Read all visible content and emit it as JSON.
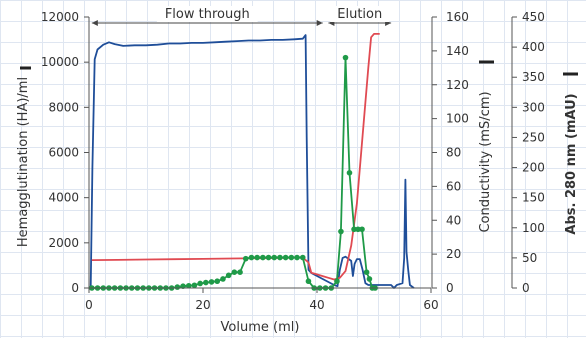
{
  "chart_data": {
    "type": "line",
    "title": "",
    "xlabel": "Volume (ml)",
    "xlim": [
      0,
      60
    ],
    "x_ticks": [
      "0",
      "20",
      "40",
      "60"
    ],
    "ylabel_left": "Hemagglutination (HA)/ml",
    "ylim_left": [
      0,
      12000
    ],
    "y_ticks_left": [
      "0",
      "2000",
      "4000",
      "6000",
      "8000",
      "10000",
      "12000"
    ],
    "ylabel_mid": "Conductivity (mS/cm)",
    "ylim_mid": [
      0,
      160
    ],
    "y_ticks_mid": [
      "0",
      "20",
      "40",
      "60",
      "80",
      "100",
      "120",
      "140",
      "160"
    ],
    "ylabel_right": "Abs. 280 nm (mAU)",
    "ylim_right": [
      0,
      450
    ],
    "y_ticks_right": [
      "0",
      "50",
      "100",
      "150",
      "200",
      "250",
      "300",
      "350",
      "400",
      "450"
    ],
    "grid": false,
    "annotations": [
      {
        "label": "Flow through",
        "x_start": 0.5,
        "x_end": 41
      },
      {
        "label": "Elution",
        "x_start": 42,
        "x_end": 53
      }
    ],
    "series": [
      {
        "axis": "right",
        "color": "#1f4e99",
        "points": [
          [
            0.3,
            0
          ],
          [
            0.6,
            200
          ],
          [
            1,
            380
          ],
          [
            1.5,
            396
          ],
          [
            2.5,
            404
          ],
          [
            3.5,
            408
          ],
          [
            4.5,
            405
          ],
          [
            6,
            402
          ],
          [
            8,
            403
          ],
          [
            10,
            403
          ],
          [
            12,
            404
          ],
          [
            14,
            406
          ],
          [
            16,
            406
          ],
          [
            18,
            407
          ],
          [
            20,
            407
          ],
          [
            22,
            408
          ],
          [
            24,
            409
          ],
          [
            26,
            410
          ],
          [
            28,
            411
          ],
          [
            30,
            411
          ],
          [
            32,
            412
          ],
          [
            34,
            412
          ],
          [
            36,
            413
          ],
          [
            37.5,
            414
          ],
          [
            38,
            420
          ],
          [
            38.2,
            250
          ],
          [
            38.5,
            30
          ],
          [
            39,
            25
          ],
          [
            40,
            20
          ],
          [
            41,
            15
          ],
          [
            42,
            10
          ],
          [
            43,
            5
          ],
          [
            43.6,
            3
          ],
          [
            44,
            30
          ],
          [
            44.5,
            50
          ],
          [
            45,
            52
          ],
          [
            46,
            45
          ],
          [
            46.3,
            20
          ],
          [
            46.6,
            40
          ],
          [
            47,
            48
          ],
          [
            47.5,
            48
          ],
          [
            48,
            30
          ],
          [
            48.5,
            8
          ],
          [
            49,
            5
          ],
          [
            49.5,
            5
          ],
          [
            50,
            5
          ],
          [
            51,
            5
          ],
          [
            52,
            5
          ],
          [
            53,
            5
          ],
          [
            53.5,
            0
          ],
          [
            54,
            5
          ],
          [
            55,
            8
          ],
          [
            55.3,
            50
          ],
          [
            55.5,
            180
          ],
          [
            55.7,
            60
          ],
          [
            56,
            30
          ],
          [
            56.3,
            5
          ],
          [
            57,
            0
          ]
        ]
      },
      {
        "axis": "mid",
        "color": "#e04a52",
        "points": [
          [
            0.5,
            16.5
          ],
          [
            5,
            16.6
          ],
          [
            10,
            16.8
          ],
          [
            15,
            17
          ],
          [
            20,
            17.2
          ],
          [
            25,
            17.4
          ],
          [
            30,
            17.6
          ],
          [
            35,
            17.8
          ],
          [
            37.5,
            18
          ],
          [
            38.5,
            15
          ],
          [
            39,
            9
          ],
          [
            40,
            8
          ],
          [
            41,
            7
          ],
          [
            42,
            6
          ],
          [
            43,
            5
          ],
          [
            44,
            6
          ],
          [
            45,
            10
          ],
          [
            46,
            25
          ],
          [
            47,
            50
          ],
          [
            48,
            90
          ],
          [
            49,
            130
          ],
          [
            49.5,
            148
          ],
          [
            50,
            150
          ],
          [
            51,
            150
          ]
        ]
      },
      {
        "axis": "left",
        "color": "#1f9a48",
        "markers": true,
        "points": [
          [
            0.5,
            0
          ],
          [
            1.5,
            0
          ],
          [
            2.5,
            0
          ],
          [
            3.5,
            0
          ],
          [
            4.5,
            0
          ],
          [
            5.5,
            0
          ],
          [
            6.5,
            0
          ],
          [
            7.5,
            0
          ],
          [
            8.5,
            0
          ],
          [
            9.5,
            0
          ],
          [
            10.5,
            0
          ],
          [
            11.5,
            0
          ],
          [
            12.5,
            0
          ],
          [
            13.5,
            0
          ],
          [
            14.5,
            0
          ],
          [
            15.5,
            40
          ],
          [
            16.5,
            80
          ],
          [
            17.5,
            100
          ],
          [
            18.5,
            120
          ],
          [
            19.5,
            200
          ],
          [
            20.5,
            240
          ],
          [
            21.5,
            270
          ],
          [
            22.5,
            300
          ],
          [
            23.5,
            400
          ],
          [
            24.5,
            560
          ],
          [
            25.5,
            700
          ],
          [
            26.5,
            700
          ],
          [
            27.5,
            1300
          ],
          [
            28.5,
            1350
          ],
          [
            29.5,
            1350
          ],
          [
            30.5,
            1350
          ],
          [
            31.5,
            1350
          ],
          [
            32.5,
            1350
          ],
          [
            33.5,
            1350
          ],
          [
            34.5,
            1350
          ],
          [
            35.5,
            1350
          ],
          [
            36.5,
            1350
          ],
          [
            37.5,
            1350
          ],
          [
            38.5,
            300
          ],
          [
            39.5,
            0
          ],
          [
            40.5,
            0
          ],
          [
            41.5,
            0
          ],
          [
            42.5,
            0
          ],
          [
            43.5,
            300
          ],
          [
            44.2,
            2500
          ],
          [
            45,
            10200
          ],
          [
            45.7,
            5100
          ],
          [
            46.5,
            2600
          ],
          [
            47.2,
            2600
          ],
          [
            47.9,
            2600
          ],
          [
            48.7,
            700
          ],
          [
            49.2,
            400
          ],
          [
            49.7,
            0
          ],
          [
            50.2,
            0
          ]
        ]
      }
    ]
  }
}
